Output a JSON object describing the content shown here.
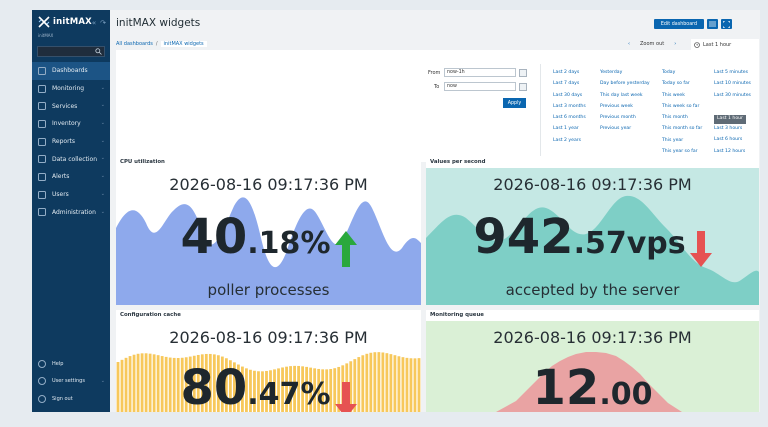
{
  "app": {
    "name": "initMAX",
    "subtitle": "initMAX"
  },
  "sidebar": {
    "items": [
      {
        "label": "Dashboards"
      },
      {
        "label": "Monitoring"
      },
      {
        "label": "Services"
      },
      {
        "label": "Inventory"
      },
      {
        "label": "Reports"
      },
      {
        "label": "Data collection"
      },
      {
        "label": "Alerts"
      },
      {
        "label": "Users"
      },
      {
        "label": "Administration"
      }
    ],
    "bottom": [
      {
        "label": "Help"
      },
      {
        "label": "User settings"
      },
      {
        "label": "Sign out"
      }
    ]
  },
  "header": {
    "title": "initMAX widgets",
    "edit_label": "Edit dashboard"
  },
  "breadcrumb": {
    "root": "All dashboards",
    "current": "initMAX widgets"
  },
  "time_controls": {
    "zoom_out": "Zoom out",
    "period": "Last 1 hour"
  },
  "filter": {
    "from_label": "From",
    "from_value": "now-1h",
    "to_label": "To",
    "to_value": "now",
    "apply_label": "Apply",
    "quick_ranges": [
      [
        "Last 2 days",
        "Last 7 days",
        "Last 30 days",
        "Last 3 months",
        "Last 6 months",
        "Last 1 year",
        "Last 2 years"
      ],
      [
        "Yesterday",
        "Day before yesterday",
        "This day last week",
        "Previous week",
        "Previous month",
        "Previous year"
      ],
      [
        "Today",
        "Today so far",
        "This week",
        "This week so far",
        "This month",
        "This month so far",
        "This year",
        "This year so far"
      ],
      [
        "Last 5 minutes",
        "Last 10 minutes",
        "Last 30 minutes",
        "Last 1 hour",
        "Last 3 hours",
        "Last 6 hours",
        "Last 12 hours",
        "Last 1 day"
      ]
    ],
    "selected_range": "Last 1 hour"
  },
  "widgets": [
    {
      "title": "CPU utilization",
      "time": "2026-08-16 09:17:36 PM",
      "int": "40",
      "dec": ".18",
      "unit": "%",
      "trend": "up",
      "desc": "poller processes",
      "bg": "#a8bff2",
      "fill": "#8ea9ec"
    },
    {
      "title": "Values per second",
      "time": "2026-08-16 09:17:36 PM",
      "int": "942",
      "dec": ".57",
      "unit": "vps",
      "trend": "down",
      "desc": "accepted by the server",
      "bg": "#c5e8e4",
      "fill": "#7ecfc6"
    },
    {
      "title": "Configuration cache",
      "time": "2026-08-16 09:17:36 PM",
      "int": "80",
      "dec": ".47",
      "unit": "%",
      "trend": "down",
      "desc": "",
      "bg": "#ffffff",
      "fill": "#f7c85b"
    },
    {
      "title": "Monitoring queue",
      "time": "2026-08-16 09:17:36 PM",
      "int": "12",
      "dec": ".00",
      "unit": "",
      "trend": "",
      "desc": "",
      "bg": "#daf0d6",
      "fill": "#e9a3a3"
    }
  ],
  "colors": {
    "accent": "#0a66b0",
    "sidebar": "#0e3a5f",
    "up": "#2aa83d",
    "down": "#e65252"
  }
}
